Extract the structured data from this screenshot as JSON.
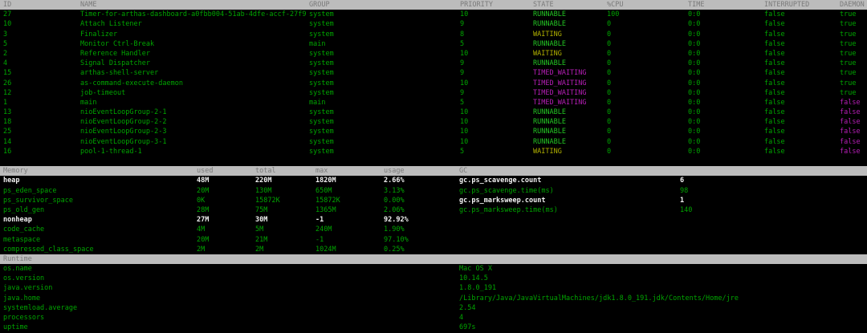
{
  "palette": {
    "background": "#000000",
    "green": "#00a400",
    "bright_green": "#23c323",
    "yellow": "#b0b000",
    "magenta": "#b51eb5",
    "white_bold": "#f2f2f2",
    "header_bar_bg": "#bcbcbc",
    "header_bar_fg": "#7a7a7a"
  },
  "thread_table": {
    "columns": [
      "ID",
      "NAME",
      "GROUP",
      "PRIORITY",
      "STATE",
      "%CPU",
      "TIME",
      "INTERRUPTED",
      "DAEMON"
    ],
    "rows": [
      {
        "id": "27",
        "name": "Timer-for-arthas-dashboard-a0fbb004-51ab-4dfe-accf-27f9",
        "group": "system",
        "priority": "10",
        "state": "RUNNABLE",
        "cpu": "100",
        "time": "0:0",
        "interrupted": "false",
        "daemon": "true"
      },
      {
        "id": "10",
        "name": "Attach Listener",
        "group": "system",
        "priority": "9",
        "state": "RUNNABLE",
        "cpu": "0",
        "time": "0:0",
        "interrupted": "false",
        "daemon": "true"
      },
      {
        "id": "3",
        "name": "Finalizer",
        "group": "system",
        "priority": "8",
        "state": "WAITING",
        "cpu": "0",
        "time": "0:0",
        "interrupted": "false",
        "daemon": "true"
      },
      {
        "id": "5",
        "name": "Monitor Ctrl-Break",
        "group": "main",
        "priority": "5",
        "state": "RUNNABLE",
        "cpu": "0",
        "time": "0:0",
        "interrupted": "false",
        "daemon": "true"
      },
      {
        "id": "2",
        "name": "Reference Handler",
        "group": "system",
        "priority": "10",
        "state": "WAITING",
        "cpu": "0",
        "time": "0:0",
        "interrupted": "false",
        "daemon": "true"
      },
      {
        "id": "4",
        "name": "Signal Dispatcher",
        "group": "system",
        "priority": "9",
        "state": "RUNNABLE",
        "cpu": "0",
        "time": "0:0",
        "interrupted": "false",
        "daemon": "true"
      },
      {
        "id": "15",
        "name": "arthas-shell-server",
        "group": "system",
        "priority": "9",
        "state": "TIMED_WAITING",
        "cpu": "0",
        "time": "0:0",
        "interrupted": "false",
        "daemon": "true"
      },
      {
        "id": "26",
        "name": "as-command-execute-daemon",
        "group": "system",
        "priority": "10",
        "state": "TIMED_WAITING",
        "cpu": "0",
        "time": "0:0",
        "interrupted": "false",
        "daemon": "true"
      },
      {
        "id": "12",
        "name": "job-timeout",
        "group": "system",
        "priority": "9",
        "state": "TIMED_WAITING",
        "cpu": "0",
        "time": "0:0",
        "interrupted": "false",
        "daemon": "true"
      },
      {
        "id": "1",
        "name": "main",
        "group": "main",
        "priority": "5",
        "state": "TIMED_WAITING",
        "cpu": "0",
        "time": "0:0",
        "interrupted": "false",
        "daemon": "false"
      },
      {
        "id": "13",
        "name": "nioEventLoopGroup-2-1",
        "group": "system",
        "priority": "10",
        "state": "RUNNABLE",
        "cpu": "0",
        "time": "0:0",
        "interrupted": "false",
        "daemon": "false"
      },
      {
        "id": "18",
        "name": "nioEventLoopGroup-2-2",
        "group": "system",
        "priority": "10",
        "state": "RUNNABLE",
        "cpu": "0",
        "time": "0:0",
        "interrupted": "false",
        "daemon": "false"
      },
      {
        "id": "25",
        "name": "nioEventLoopGroup-2-3",
        "group": "system",
        "priority": "10",
        "state": "RUNNABLE",
        "cpu": "0",
        "time": "0:0",
        "interrupted": "false",
        "daemon": "false"
      },
      {
        "id": "14",
        "name": "nioEventLoopGroup-3-1",
        "group": "system",
        "priority": "10",
        "state": "RUNNABLE",
        "cpu": "0",
        "time": "0:0",
        "interrupted": "false",
        "daemon": "false"
      },
      {
        "id": "16",
        "name": "pool-1-thread-1",
        "group": "system",
        "priority": "5",
        "state": "WAITING",
        "cpu": "0",
        "time": "0:0",
        "interrupted": "false",
        "daemon": "false"
      }
    ]
  },
  "memory_table": {
    "headers": [
      "Memory",
      "used",
      "total",
      "max",
      "usage"
    ],
    "gc_header": "GC",
    "rows": [
      {
        "name": "heap",
        "used": "48M",
        "total": "220M",
        "max": "1820M",
        "usage": "2.66%",
        "emph": true
      },
      {
        "name": "ps_eden_space",
        "used": "20M",
        "total": "130M",
        "max": "650M",
        "usage": "3.13%",
        "emph": false
      },
      {
        "name": "ps_survivor_space",
        "used": "0K",
        "total": "15872K",
        "max": "15872K",
        "usage": "0.00%",
        "emph": false
      },
      {
        "name": "ps_old_gen",
        "used": "28M",
        "total": "75M",
        "max": "1365M",
        "usage": "2.06%",
        "emph": false
      },
      {
        "name": "nonheap",
        "used": "27M",
        "total": "30M",
        "max": "-1",
        "usage": "92.92%",
        "emph": true
      },
      {
        "name": "code_cache",
        "used": "4M",
        "total": "5M",
        "max": "240M",
        "usage": "1.90%",
        "emph": false
      },
      {
        "name": "metaspace",
        "used": "20M",
        "total": "21M",
        "max": "-1",
        "usage": "97.10%",
        "emph": false
      },
      {
        "name": "compressed_class_space",
        "used": "2M",
        "total": "2M",
        "max": "1024M",
        "usage": "0.25%",
        "emph": false
      }
    ],
    "gc_rows": [
      {
        "name": "gc.ps_scavenge.count",
        "value": "6",
        "emph": true
      },
      {
        "name": "gc.ps_scavenge.time(ms)",
        "value": "98",
        "emph": false
      },
      {
        "name": "gc.ps_marksweep.count",
        "value": "1",
        "emph": true
      },
      {
        "name": "gc.ps_marksweep.time(ms)",
        "value": "140",
        "emph": false
      }
    ]
  },
  "runtime_table": {
    "header": "Runtime",
    "rows": [
      {
        "name": "os.name",
        "value": "Mac OS X"
      },
      {
        "name": "os.version",
        "value": "10.14.5"
      },
      {
        "name": "java.version",
        "value": "1.8.0_191"
      },
      {
        "name": "java.home",
        "value": "/Library/Java/JavaVirtualMachines/jdk1.8.0_191.jdk/Contents/Home/jre"
      },
      {
        "name": "systemload.average",
        "value": "2.54"
      },
      {
        "name": "processors",
        "value": "4"
      },
      {
        "name": "uptime",
        "value": "697s"
      }
    ]
  }
}
